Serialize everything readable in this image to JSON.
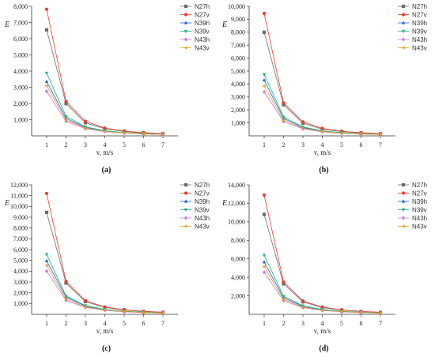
{
  "figure": {
    "colors": {
      "N27h": "#6b6b6b",
      "N27v": "#ee3b2f",
      "N39h": "#1f5fe0",
      "N39v": "#1ab57d",
      "N43h": "#c77ae0",
      "N43v": "#e0a21f"
    },
    "markers": {
      "N27h": "square",
      "N27v": "circle",
      "N39h": "triangle-up",
      "N39v": "triangle-down",
      "N43h": "diamond",
      "N43v": "triangle-left"
    }
  },
  "chart_data": [
    {
      "type": "line",
      "caption": "(a)",
      "ylabel": "E",
      "xlabel": "v, m/s",
      "x": [
        1,
        2,
        3,
        4,
        5,
        6,
        7
      ],
      "xticks": [
        "1",
        "2",
        "3",
        "4",
        "5",
        "6",
        "7"
      ],
      "ylim": [
        0,
        8000
      ],
      "yticks": [
        "1,000",
        "2,000",
        "3,000",
        "4,000",
        "5,000",
        "6,000",
        "7,000",
        "8,000"
      ],
      "ytick_values": [
        1000,
        2000,
        3000,
        4000,
        5000,
        6000,
        7000,
        8000
      ],
      "legend": "top-right",
      "series": [
        {
          "name": "N27h",
          "values": [
            6550,
            1990,
            810,
            440,
            270,
            180,
            125
          ]
        },
        {
          "name": "N27v",
          "values": [
            7820,
            2120,
            900,
            480,
            300,
            200,
            140
          ]
        },
        {
          "name": "N39h",
          "values": [
            3350,
            1080,
            520,
            300,
            190,
            130,
            95
          ]
        },
        {
          "name": "N39v",
          "values": [
            3880,
            1200,
            560,
            320,
            200,
            140,
            100
          ]
        },
        {
          "name": "N43h",
          "values": [
            2750,
            900,
            440,
            260,
            170,
            120,
            85
          ]
        },
        {
          "name": "N43v",
          "values": [
            3100,
            980,
            480,
            280,
            180,
            125,
            90
          ]
        }
      ]
    },
    {
      "type": "line",
      "caption": "(b)",
      "ylabel": "E",
      "xlabel": "v, m/s",
      "x": [
        1,
        2,
        3,
        4,
        5,
        6,
        7
      ],
      "xticks": [
        "1",
        "2",
        "3",
        "4",
        "5",
        "6",
        "7"
      ],
      "ylim": [
        0,
        10000
      ],
      "yticks": [
        "1,000",
        "2,000",
        "3,000",
        "4,000",
        "5,000",
        "6,000",
        "7,000",
        "8,000",
        "9,000",
        "10,000"
      ],
      "ytick_values": [
        1000,
        2000,
        3000,
        4000,
        5000,
        6000,
        7000,
        8000,
        9000,
        10000
      ],
      "legend": "top-right",
      "series": [
        {
          "name": "N27h",
          "values": [
            8000,
            2400,
            980,
            520,
            330,
            220,
            150
          ]
        },
        {
          "name": "N27v",
          "values": [
            9450,
            2550,
            1080,
            580,
            360,
            240,
            170
          ]
        },
        {
          "name": "N39h",
          "values": [
            4300,
            1350,
            640,
            360,
            230,
            160,
            115
          ]
        },
        {
          "name": "N39v",
          "values": [
            4750,
            1450,
            690,
            390,
            250,
            170,
            120
          ]
        },
        {
          "name": "N43h",
          "values": [
            3400,
            1100,
            540,
            310,
            200,
            140,
            100
          ]
        },
        {
          "name": "N43v",
          "values": [
            3850,
            1200,
            590,
            340,
            215,
            150,
            108
          ]
        }
      ]
    },
    {
      "type": "line",
      "caption": "(c)",
      "ylabel": "E",
      "xlabel": "v, m/s",
      "x": [
        1,
        2,
        3,
        4,
        5,
        6,
        7
      ],
      "xticks": [
        "1",
        "2",
        "3",
        "4",
        "5",
        "6",
        "7"
      ],
      "ylim": [
        0,
        12000
      ],
      "yticks": [
        "1,000",
        "2,000",
        "3,000",
        "4,000",
        "5,000",
        "6,000",
        "7,000",
        "8,000",
        "9,000",
        "10,000",
        "11,000",
        "12,000"
      ],
      "ytick_values": [
        1000,
        2000,
        3000,
        4000,
        5000,
        6000,
        7000,
        8000,
        9000,
        10000,
        11000,
        12000
      ],
      "legend": "top-right",
      "series": [
        {
          "name": "N27h",
          "values": [
            9450,
            2900,
            1180,
            640,
            400,
            260,
            180
          ]
        },
        {
          "name": "N27v",
          "values": [
            11200,
            3050,
            1270,
            690,
            430,
            280,
            195
          ]
        },
        {
          "name": "N39h",
          "values": [
            4950,
            1600,
            760,
            430,
            270,
            185,
            130
          ]
        },
        {
          "name": "N39v",
          "values": [
            5550,
            1700,
            810,
            460,
            290,
            200,
            140
          ]
        },
        {
          "name": "N43h",
          "values": [
            4000,
            1300,
            640,
            370,
            235,
            165,
            115
          ]
        },
        {
          "name": "N43v",
          "values": [
            4550,
            1420,
            690,
            400,
            255,
            175,
            122
          ]
        }
      ]
    },
    {
      "type": "line",
      "caption": "(d)",
      "ylabel": "E",
      "xlabel": "v, m/s",
      "x": [
        1,
        2,
        3,
        4,
        5,
        6,
        7
      ],
      "xticks": [
        "1",
        "2",
        "3",
        "4",
        "5",
        "6",
        "7"
      ],
      "ylim": [
        0,
        14000
      ],
      "yticks": [
        "2,000",
        "4,000",
        "6,000",
        "8,000",
        "10,000",
        "12,000",
        "14,000"
      ],
      "ytick_values": [
        2000,
        4000,
        6000,
        8000,
        10000,
        12000,
        14000
      ],
      "legend": "top-right",
      "series": [
        {
          "name": "N27h",
          "values": [
            10800,
            3300,
            1350,
            730,
            460,
            300,
            210
          ]
        },
        {
          "name": "N27v",
          "values": [
            12900,
            3500,
            1450,
            790,
            490,
            320,
            225
          ]
        },
        {
          "name": "N39h",
          "values": [
            5650,
            1800,
            860,
            490,
            310,
            210,
            150
          ]
        },
        {
          "name": "N39v",
          "values": [
            6400,
            1950,
            930,
            530,
            330,
            225,
            160
          ]
        },
        {
          "name": "N43h",
          "values": [
            4550,
            1480,
            720,
            420,
            270,
            185,
            130
          ]
        },
        {
          "name": "N43v",
          "values": [
            5150,
            1620,
            780,
            450,
            290,
            200,
            140
          ]
        }
      ]
    }
  ]
}
